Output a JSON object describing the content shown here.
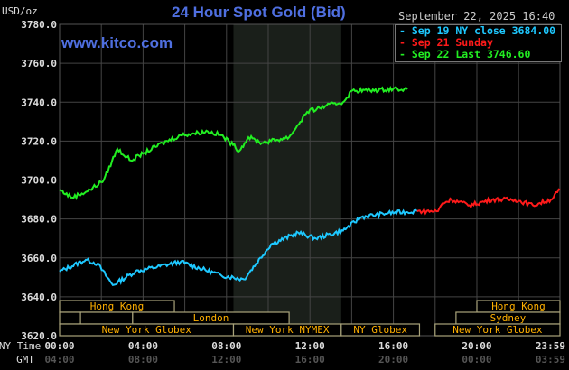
{
  "chart_data": {
    "type": "line",
    "title": "24 Hour Spot Gold (Bid)",
    "ylabel": "USD/oz",
    "ylim": [
      3620,
      3780
    ],
    "yticks": [
      "3780.0",
      "3760.0",
      "3740.0",
      "3720.0",
      "3700.0",
      "3680.0",
      "3660.0",
      "3640.0",
      "3620.0"
    ],
    "xlim": [
      "00:00",
      "23:59"
    ],
    "x_axis_rows": [
      {
        "label": "NY Time",
        "ticks": [
          "00:00",
          "04:00",
          "08:00",
          "12:00",
          "16:00",
          "20:00",
          "23:59"
        ]
      },
      {
        "label": "GMT",
        "ticks": [
          "04:00",
          "08:00",
          "12:00",
          "16:00",
          "20:00",
          "00:00",
          "03:59"
        ]
      }
    ],
    "grid": true,
    "shaded_region": [
      "08:20",
      "13:30"
    ],
    "legend_placement": "top-right",
    "timestamp": "September 22, 2025 16:40",
    "series": [
      {
        "name": "Sep 19 NY close 3684.00",
        "color": "#1ec8ff",
        "points": [
          [
            "00:00",
            3653
          ],
          [
            "01:15",
            3659
          ],
          [
            "01:49",
            3657
          ],
          [
            "02:33",
            3646
          ],
          [
            "03:38",
            3653
          ],
          [
            "05:48",
            3658
          ],
          [
            "07:45",
            3651
          ],
          [
            "08:50",
            3649
          ],
          [
            "10:08",
            3667
          ],
          [
            "11:26",
            3673
          ],
          [
            "12:17",
            3670
          ],
          [
            "13:35",
            3674
          ],
          [
            "14:28",
            3681
          ],
          [
            "15:45",
            3683
          ],
          [
            "17:08",
            3684
          ]
        ]
      },
      {
        "name": "Sep 21 Sunday",
        "color": "#ff1a1a",
        "points": [
          [
            "17:08",
            3684
          ],
          [
            "18:08",
            3684
          ],
          [
            "18:21",
            3688
          ],
          [
            "18:47",
            3690
          ],
          [
            "19:39",
            3687
          ],
          [
            "20:44",
            3690
          ],
          [
            "21:49",
            3690
          ],
          [
            "22:41",
            3687
          ],
          [
            "23:33",
            3690
          ],
          [
            "23:59",
            3695
          ]
        ]
      },
      {
        "name": "Sep 22 Last 3746.60",
        "color": "#22ee22",
        "points": [
          [
            "00:00",
            3695
          ],
          [
            "00:36",
            3691
          ],
          [
            "01:28",
            3695
          ],
          [
            "02:07",
            3700
          ],
          [
            "02:46",
            3716
          ],
          [
            "03:25",
            3710
          ],
          [
            "04:04",
            3714
          ],
          [
            "04:56",
            3719
          ],
          [
            "05:48",
            3723
          ],
          [
            "07:06",
            3725
          ],
          [
            "07:45",
            3723
          ],
          [
            "08:19",
            3718
          ],
          [
            "08:37",
            3715
          ],
          [
            "09:03",
            3722
          ],
          [
            "09:42",
            3719
          ],
          [
            "10:08",
            3720
          ],
          [
            "11:00",
            3722
          ],
          [
            "11:52",
            3735
          ],
          [
            "12:44",
            3738
          ],
          [
            "13:35",
            3740
          ],
          [
            "14:02",
            3746
          ],
          [
            "14:53",
            3746
          ],
          [
            "16:11",
            3747
          ],
          [
            "16:40",
            3746.6
          ]
        ]
      }
    ],
    "sessions": [
      {
        "label": "Hong Kong",
        "row": 0,
        "start": "00:00",
        "end": "05:30"
      },
      {
        "label": "Hong Kong",
        "row": 0,
        "start": "20:00",
        "end": "23:59"
      },
      {
        "label": "",
        "row": 1,
        "start": "00:00",
        "end": "01:00"
      },
      {
        "label": "",
        "row": 1,
        "start": "01:00",
        "end": "03:30"
      },
      {
        "label": "London",
        "row": 1,
        "start": "03:30",
        "end": "11:00"
      },
      {
        "label": "Sydney",
        "row": 1,
        "start": "19:00",
        "end": "23:59"
      },
      {
        "label": "New York Globex",
        "row": 2,
        "start": "00:00",
        "end": "08:20"
      },
      {
        "label": "New York NYMEX",
        "row": 2,
        "start": "08:20",
        "end": "13:30"
      },
      {
        "label": "NY Globex",
        "row": 2,
        "start": "13:30",
        "end": "17:15"
      },
      {
        "label": "New York Globex",
        "row": 2,
        "start": "18:00",
        "end": "23:59"
      }
    ]
  },
  "brand": "www.kitco.com"
}
